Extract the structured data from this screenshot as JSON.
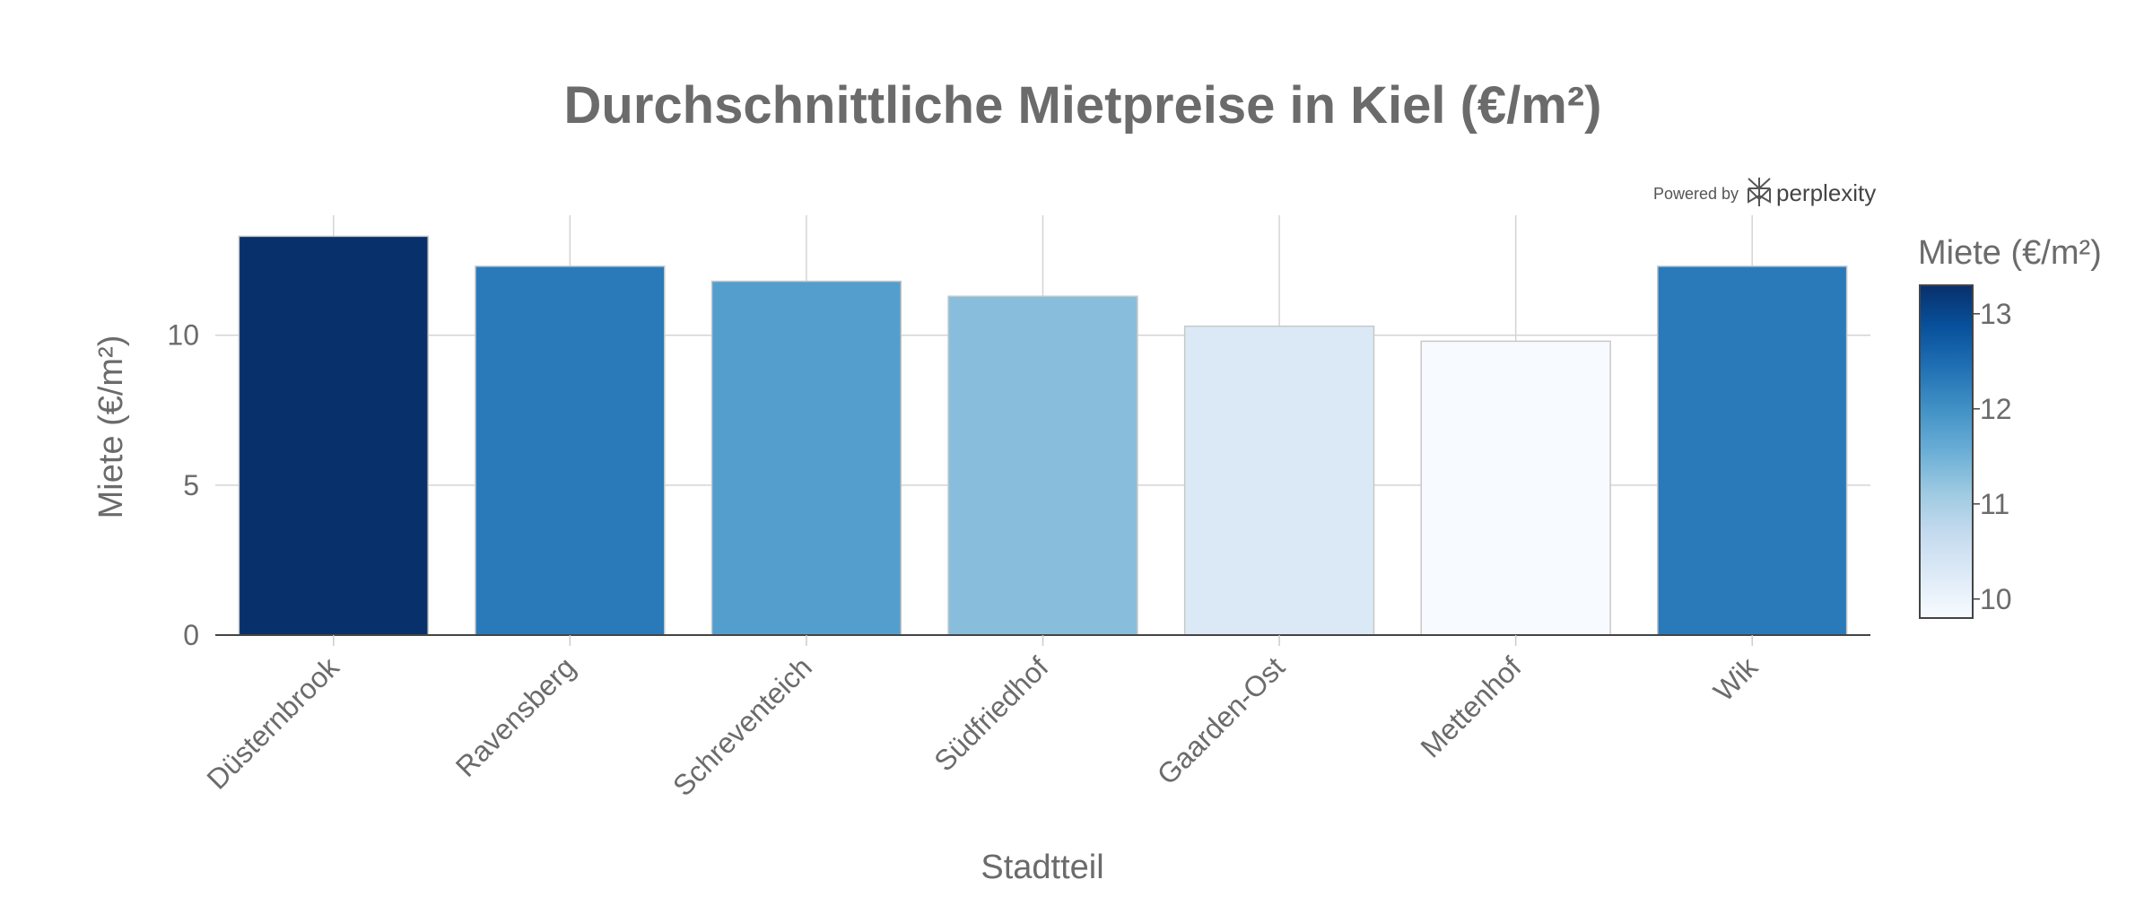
{
  "chart_data": {
    "type": "bar",
    "title": "Durchschnittliche Mietpreise in Kiel (€/m²)",
    "xlabel": "Stadtteil",
    "ylabel": "Miete (€/m²)",
    "categories": [
      "Düsternbrook",
      "Ravensberg",
      "Schreventeich",
      "Südfriedhof",
      "Gaarden-Ost",
      "Mettenhof",
      "Wik"
    ],
    "values": [
      13.3,
      12.3,
      11.8,
      11.3,
      10.3,
      9.8,
      12.3
    ],
    "ylim": [
      0,
      14
    ],
    "yticks": [
      0,
      5,
      10
    ],
    "grid": true,
    "colorbar": {
      "title": "Miete (€/m²)",
      "range": [
        9.8,
        13.3
      ],
      "ticks": [
        10,
        11,
        12,
        13
      ],
      "colorscale": [
        "#f7fbff",
        "#deebf7",
        "#c6dbef",
        "#9ecae1",
        "#6baed6",
        "#4292c6",
        "#2171b5",
        "#08519c",
        "#08306b"
      ],
      "placement": "right"
    }
  },
  "branding": {
    "powered_by": "Powered by",
    "brand": "perplexity"
  }
}
